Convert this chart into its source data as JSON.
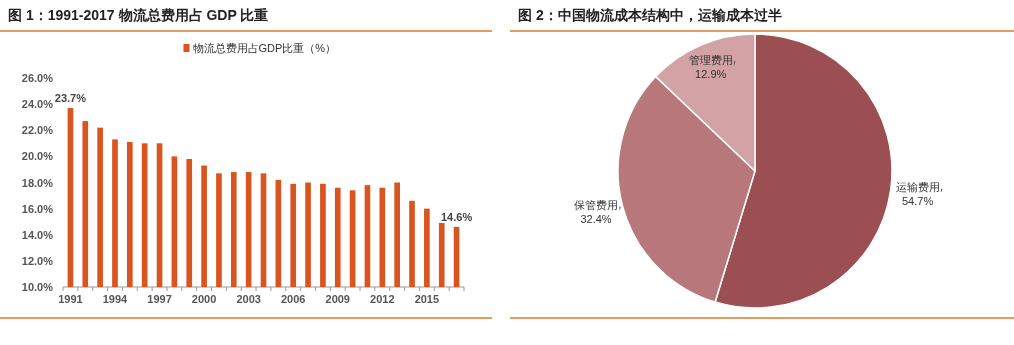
{
  "chart_data": [
    {
      "type": "bar",
      "title": "图 1：1991-2017 物流总费用占 GDP 比重",
      "categories": [
        "1991",
        null,
        null,
        "1994",
        null,
        null,
        "1997",
        null,
        null,
        "2000",
        null,
        null,
        "2003",
        null,
        null,
        "2006",
        null,
        null,
        "2009",
        null,
        null,
        "2012",
        null,
        null,
        "2015",
        null,
        null
      ],
      "series": [
        {
          "name": "物流总费用占GDP比重（%）",
          "color": "#d9541e",
          "values": [
            23.7,
            22.7,
            22.2,
            21.3,
            21.1,
            21.0,
            21.0,
            20.0,
            19.8,
            19.3,
            18.7,
            18.8,
            18.8,
            18.7,
            18.2,
            17.9,
            18.0,
            17.9,
            17.6,
            17.4,
            17.8,
            17.6,
            18.0,
            16.6,
            16.0,
            14.9,
            14.6
          ],
          "value_labels": [
            "23.7%",
            null,
            null,
            null,
            null,
            null,
            null,
            null,
            null,
            null,
            null,
            null,
            null,
            null,
            null,
            null,
            null,
            null,
            null,
            null,
            null,
            null,
            null,
            null,
            null,
            null,
            "14.6%"
          ]
        }
      ],
      "ylim": [
        10,
        26
      ],
      "yticks": [
        {
          "value": 10,
          "label": "10.0%"
        },
        {
          "value": 12,
          "label": "12.0%"
        },
        {
          "value": 14,
          "label": "14.0%"
        },
        {
          "value": 16,
          "label": "16.0%"
        },
        {
          "value": 18,
          "label": "18.0%"
        },
        {
          "value": 20,
          "label": "20.0%"
        },
        {
          "value": 22,
          "label": "22.0%"
        },
        {
          "value": 24,
          "label": "24.0%"
        },
        {
          "value": 26,
          "label": "26.0%"
        }
      ],
      "legend": "top",
      "grid": false
    },
    {
      "type": "pie",
      "title": "图 2：中国物流成本结构中，运输成本过半",
      "categories": [
        "运输费用",
        "保管费用",
        "管理费用"
      ],
      "values": [
        54.7,
        32.4,
        12.9
      ],
      "value_labels": [
        "54.7%",
        "32.4%",
        "12.9%"
      ],
      "colors": [
        "#9b4f52",
        "#b8777a",
        "#d3a2a4"
      ]
    }
  ]
}
